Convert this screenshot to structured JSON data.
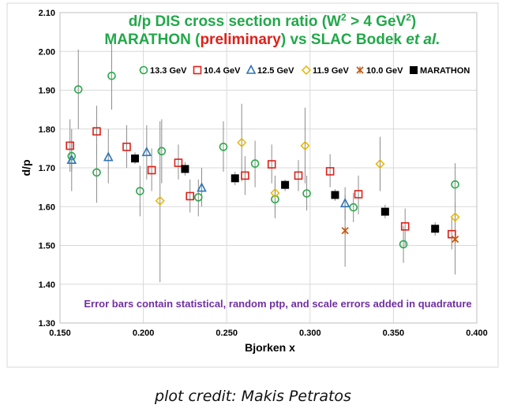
{
  "chart_data": {
    "type": "scatter",
    "title_line1": {
      "text": "d/p DIS cross section ratio (W",
      "sup1": "2",
      "mid": " > 4 GeV",
      "sup2": "2",
      "end": ")"
    },
    "title_line2": {
      "part1": "MARATHON (",
      "part2": "preliminary",
      "part3": ") vs SLAC Bodek ",
      "part4": "et al."
    },
    "xlabel": "Bjorken x",
    "ylabel": "d/p",
    "xlim": [
      0.15,
      0.4
    ],
    "ylim": [
      1.3,
      2.1
    ],
    "x_ticks": [
      {
        "v": 0.15,
        "label": "0.150"
      },
      {
        "v": 0.2,
        "label": "0.200"
      },
      {
        "v": 0.25,
        "label": "0.250"
      },
      {
        "v": 0.3,
        "label": "0.300"
      },
      {
        "v": 0.35,
        "label": "0.350"
      },
      {
        "v": 0.4,
        "label": "0.400"
      }
    ],
    "y_ticks": [
      {
        "v": 1.3,
        "label": "1.30"
      },
      {
        "v": 1.4,
        "label": "1.40"
      },
      {
        "v": 1.5,
        "label": "1.50"
      },
      {
        "v": 1.6,
        "label": "1.60"
      },
      {
        "v": 1.7,
        "label": "1.70"
      },
      {
        "v": 1.8,
        "label": "1.80"
      },
      {
        "v": 1.9,
        "label": "1.90"
      },
      {
        "v": 2.0,
        "label": "2.00"
      },
      {
        "v": 2.1,
        "label": "2.10"
      }
    ],
    "grid": true,
    "legend_position": "top",
    "note": "Error bars contain statistical, random ptp, and scale errors added in quadrature",
    "colors": {
      "title": "#22a84a",
      "preliminary": "#e0201a",
      "note": "#7030a0",
      "grid": "#d9d9d9",
      "errorbar": "#8c8c8c"
    },
    "series": [
      {
        "name": "13.3 GeV",
        "marker": "circle",
        "color": "#2aa84a",
        "points": [
          {
            "x": 0.157,
            "y": 1.73,
            "lo": 1.69,
            "hi": 1.77
          },
          {
            "x": 0.161,
            "y": 1.902,
            "lo": 1.8,
            "hi": 2.005
          },
          {
            "x": 0.172,
            "y": 1.688,
            "lo": 1.61,
            "hi": 1.76
          },
          {
            "x": 0.181,
            "y": 1.937,
            "lo": 1.85,
            "hi": 2.02
          },
          {
            "x": 0.198,
            "y": 1.64,
            "lo": 1.575,
            "hi": 1.705
          },
          {
            "x": 0.211,
            "y": 1.743,
            "lo": 1.66,
            "hi": 1.825
          },
          {
            "x": 0.233,
            "y": 1.624,
            "lo": 1.575,
            "hi": 1.67
          },
          {
            "x": 0.248,
            "y": 1.754,
            "lo": 1.69,
            "hi": 1.82
          },
          {
            "x": 0.267,
            "y": 1.711,
            "lo": 1.65,
            "hi": 1.77
          },
          {
            "x": 0.279,
            "y": 1.619,
            "lo": 1.57,
            "hi": 1.665
          },
          {
            "x": 0.298,
            "y": 1.634,
            "lo": 1.59,
            "hi": 1.68
          },
          {
            "x": 0.326,
            "y": 1.598,
            "lo": 1.56,
            "hi": 1.635
          },
          {
            "x": 0.356,
            "y": 1.503,
            "lo": 1.455,
            "hi": 1.55
          },
          {
            "x": 0.387,
            "y": 1.657,
            "lo": 1.6,
            "hi": 1.712
          }
        ]
      },
      {
        "name": "10.4 GeV",
        "marker": "square",
        "color": "#e0201a",
        "points": [
          {
            "x": 0.156,
            "y": 1.757,
            "lo": 1.69,
            "hi": 1.825
          },
          {
            "x": 0.172,
            "y": 1.794,
            "lo": 1.73,
            "hi": 1.86
          },
          {
            "x": 0.19,
            "y": 1.754,
            "lo": 1.7,
            "hi": 1.81
          },
          {
            "x": 0.205,
            "y": 1.694,
            "lo": 1.64,
            "hi": 1.75
          },
          {
            "x": 0.221,
            "y": 1.713,
            "lo": 1.67,
            "hi": 1.76
          },
          {
            "x": 0.228,
            "y": 1.627,
            "lo": 1.585,
            "hi": 1.67
          },
          {
            "x": 0.261,
            "y": 1.68,
            "lo": 1.63,
            "hi": 1.73
          },
          {
            "x": 0.277,
            "y": 1.709,
            "lo": 1.66,
            "hi": 1.76
          },
          {
            "x": 0.293,
            "y": 1.68,
            "lo": 1.64,
            "hi": 1.72
          },
          {
            "x": 0.312,
            "y": 1.691,
            "lo": 1.65,
            "hi": 1.735
          },
          {
            "x": 0.329,
            "y": 1.632,
            "lo": 1.58,
            "hi": 1.68
          },
          {
            "x": 0.357,
            "y": 1.549,
            "lo": 1.5,
            "hi": 1.595
          },
          {
            "x": 0.385,
            "y": 1.529,
            "lo": 1.49,
            "hi": 1.57
          }
        ]
      },
      {
        "name": "12.5 GeV",
        "marker": "triangle",
        "color": "#2e75b6",
        "points": [
          {
            "x": 0.157,
            "y": 1.72,
            "lo": 1.64,
            "hi": 1.8
          },
          {
            "x": 0.179,
            "y": 1.727,
            "lo": 1.66,
            "hi": 1.8
          },
          {
            "x": 0.202,
            "y": 1.74,
            "lo": 1.67,
            "hi": 1.81
          },
          {
            "x": 0.235,
            "y": 1.648,
            "lo": 1.6,
            "hi": 1.7
          },
          {
            "x": 0.321,
            "y": 1.608,
            "lo": 1.565,
            "hi": 1.65
          }
        ]
      },
      {
        "name": "11.9 GeV",
        "marker": "diamond",
        "color": "#e8b500",
        "points": [
          {
            "x": 0.21,
            "y": 1.615,
            "lo": 1.405,
            "hi": 1.82
          },
          {
            "x": 0.259,
            "y": 1.765,
            "lo": 1.665,
            "hi": 1.865
          },
          {
            "x": 0.279,
            "y": 1.635,
            "lo": 1.59,
            "hi": 1.68
          },
          {
            "x": 0.297,
            "y": 1.757,
            "lo": 1.66,
            "hi": 1.855
          },
          {
            "x": 0.342,
            "y": 1.71,
            "lo": 1.64,
            "hi": 1.78
          },
          {
            "x": 0.387,
            "y": 1.573,
            "lo": 1.535,
            "hi": 1.61
          }
        ]
      },
      {
        "name": "10.0 GeV",
        "marker": "star",
        "color": "#c55a11",
        "points": [
          {
            "x": 0.321,
            "y": 1.538,
            "lo": 1.445,
            "hi": 1.63
          },
          {
            "x": 0.387,
            "y": 1.516,
            "lo": 1.425,
            "hi": 1.605
          }
        ]
      },
      {
        "name": "MARATHON",
        "marker": "filled-square",
        "color": "#000000",
        "points": [
          {
            "x": 0.195,
            "y": 1.724,
            "lo": 1.71,
            "hi": 1.74
          },
          {
            "x": 0.225,
            "y": 1.697,
            "lo": 1.68,
            "hi": 1.715
          },
          {
            "x": 0.255,
            "y": 1.673,
            "lo": 1.655,
            "hi": 1.69
          },
          {
            "x": 0.285,
            "y": 1.656,
            "lo": 1.64,
            "hi": 1.67
          },
          {
            "x": 0.315,
            "y": 1.63,
            "lo": 1.615,
            "hi": 1.645
          },
          {
            "x": 0.345,
            "y": 1.587,
            "lo": 1.57,
            "hi": 1.605
          },
          {
            "x": 0.375,
            "y": 1.543,
            "lo": 1.525,
            "hi": 1.56
          }
        ]
      }
    ]
  },
  "credit": "plot credit: Makis Petratos"
}
